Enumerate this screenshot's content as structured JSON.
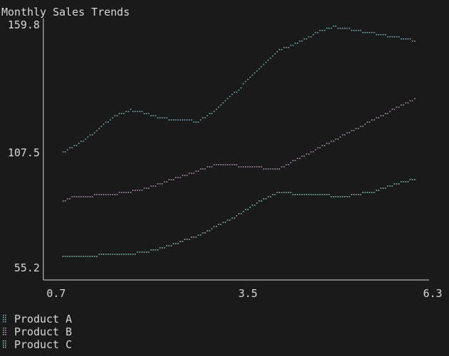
{
  "chart_data": {
    "type": "line",
    "title": "Monthly Sales Trends",
    "xlabel": "",
    "ylabel": "",
    "xlim": [
      0.7,
      6.3
    ],
    "ylim": [
      55.2,
      159.8
    ],
    "x_ticks": [
      "0.7",
      "3.5",
      "6.3"
    ],
    "y_ticks": [
      "55.2",
      "107.5",
      "159.8"
    ],
    "legend_position": "bottom-left",
    "grid": false,
    "series": [
      {
        "name": "Product A",
        "color": "#7fc3c9",
        "x": [
          1.0,
          1.2,
          1.4,
          1.6,
          1.8,
          2.0,
          2.2,
          2.4,
          2.6,
          2.8,
          3.0,
          3.2,
          3.4,
          3.6,
          3.8,
          4.0,
          4.2,
          4.4,
          4.6,
          4.8,
          5.0,
          5.2,
          5.4,
          5.6,
          5.8,
          6.0,
          6.2
        ],
        "values": [
          105,
          108,
          112,
          117,
          121,
          123,
          122,
          120,
          119,
          119,
          118,
          122,
          127,
          132,
          138,
          144,
          149,
          151,
          154,
          157,
          159,
          158,
          157,
          156,
          155,
          154,
          153
        ]
      },
      {
        "name": "Product B",
        "color": "#c79fc9",
        "x": [
          1.0,
          1.2,
          1.4,
          1.6,
          1.8,
          2.0,
          2.2,
          2.4,
          2.6,
          2.8,
          3.0,
          3.2,
          3.4,
          3.6,
          3.8,
          4.0,
          4.2,
          4.4,
          4.6,
          4.8,
          5.0,
          5.2,
          5.4,
          5.6,
          5.8,
          6.0,
          6.2
        ],
        "values": [
          84,
          86,
          86,
          87,
          87,
          88,
          89,
          91,
          93,
          95,
          97,
          99,
          100,
          99,
          99,
          98,
          98,
          101,
          104,
          107,
          110,
          113,
          116,
          119,
          122,
          125,
          128
        ]
      },
      {
        "name": "Product C",
        "color": "#8fd1b4",
        "x": [
          1.0,
          1.2,
          1.4,
          1.6,
          1.8,
          2.0,
          2.2,
          2.4,
          2.6,
          2.8,
          3.0,
          3.2,
          3.4,
          3.6,
          3.8,
          4.0,
          4.2,
          4.4,
          4.6,
          4.8,
          5.0,
          5.2,
          5.4,
          5.6,
          5.8,
          6.0,
          6.2
        ],
        "values": [
          60,
          60,
          60,
          61,
          61,
          61,
          62,
          63,
          65,
          67,
          69,
          72,
          75,
          78,
          82,
          85,
          88,
          87,
          87,
          87,
          86,
          86,
          87,
          88,
          90,
          92,
          93
        ]
      }
    ]
  }
}
